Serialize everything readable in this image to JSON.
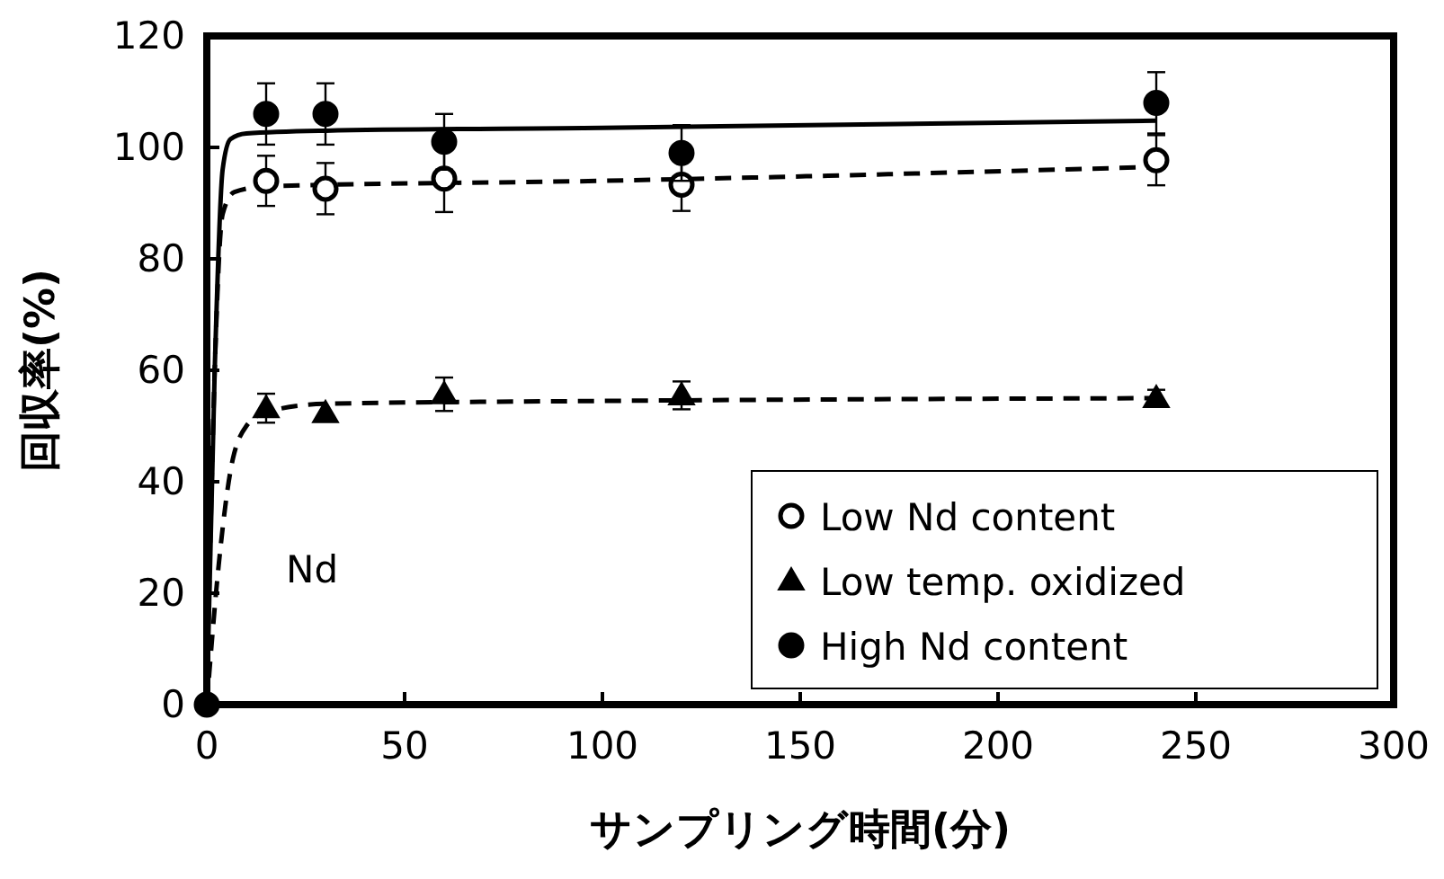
{
  "chart_data": {
    "type": "scatter",
    "xlabel": "サンプリング時間(分)",
    "ylabel": "回収率(%)",
    "xlim": [
      0,
      300
    ],
    "ylim": [
      0,
      120
    ],
    "xticks": [
      0,
      50,
      100,
      150,
      200,
      250,
      300
    ],
    "yticks": [
      0,
      20,
      40,
      60,
      80,
      100,
      120
    ],
    "grid": false,
    "legend": "bottom right",
    "annotations": [
      "Nd"
    ],
    "series": [
      {
        "type": "line",
        "marker": "none",
        "line_style": "dashed",
        "color": "#000000",
        "x": [
          0,
          2,
          4,
          7,
          15,
          100,
          240
        ],
        "values": [
          0,
          60,
          88,
          92,
          93,
          94,
          96.5
        ]
      },
      {
        "type": "line",
        "marker": "none",
        "line_style": "dashed",
        "color": "#000000",
        "x": [
          0,
          3,
          6,
          10,
          15,
          30,
          100,
          240
        ],
        "values": [
          0,
          25,
          42,
          50,
          52.5,
          54,
          54.5,
          55
        ]
      },
      {
        "type": "line",
        "marker": "none",
        "line_style": "solid",
        "color": "#000000",
        "x": [
          0,
          2,
          4,
          6,
          10,
          30,
          100,
          240
        ],
        "values": [
          0,
          60,
          96,
          101.5,
          102.5,
          103,
          103.5,
          104.8
        ]
      },
      {
        "name": "Low Nd content",
        "marker": "circle",
        "color": "#ffffff",
        "x": [
          15,
          30,
          60,
          120,
          240
        ],
        "values": [
          94,
          92.6,
          94.4,
          93.3,
          97.7
        ],
        "errors": [
          4.5,
          4.6,
          6,
          4.7,
          4.5
        ]
      },
      {
        "name": "Low temp. oxidized",
        "marker": "triangle",
        "color": "#000000",
        "x": [
          15,
          30,
          60,
          120,
          240
        ],
        "values": [
          53.2,
          52.3,
          55.7,
          55.5,
          55
        ],
        "errors": [
          2.6,
          null,
          3,
          2.5,
          1.5
        ]
      },
      {
        "name": "High Nd content",
        "marker": "circle",
        "color": "#000000",
        "x": [
          0,
          15,
          30,
          60,
          120,
          240
        ],
        "values": [
          0,
          106,
          106,
          101,
          99,
          108
        ],
        "errors": [
          null,
          5.5,
          5.5,
          5,
          5,
          5.5
        ]
      }
    ]
  }
}
